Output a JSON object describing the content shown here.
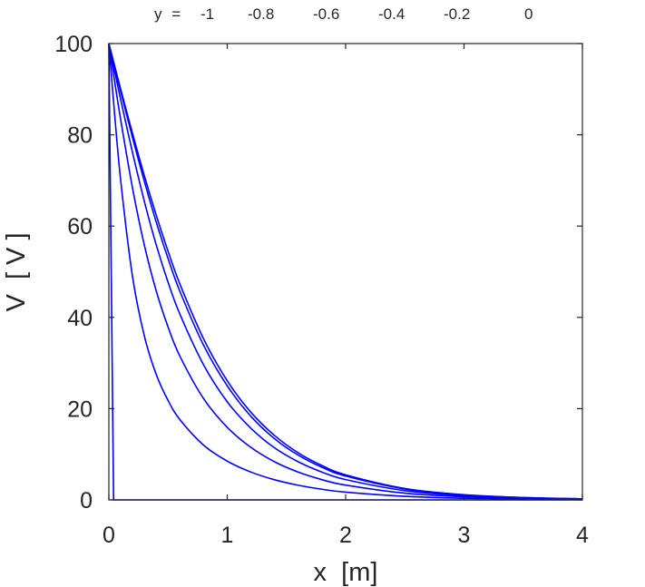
{
  "chart_data": {
    "type": "line",
    "title": "",
    "xlabel": "x  [m]",
    "ylabel": "V  [ V ]",
    "xlim": [
      0,
      4
    ],
    "ylim": [
      0,
      100
    ],
    "xticks": [
      "0",
      "1",
      "2",
      "3",
      "4"
    ],
    "yticks": [
      "0",
      "20",
      "40",
      "60",
      "80",
      "100"
    ],
    "grid": false,
    "legend_header": "y  =",
    "series_color": "#0000ff",
    "x": [
      0,
      0.04,
      0.1,
      0.2,
      0.3,
      0.4,
      0.5,
      0.6,
      0.8,
      1.0,
      1.2,
      1.4,
      1.6,
      1.8,
      2.0,
      2.5,
      3.0,
      3.5,
      4.0
    ],
    "series": [
      {
        "name": "-1",
        "values": [
          100,
          0,
          0,
          0,
          0,
          0,
          0,
          0,
          0,
          0,
          0,
          0,
          0,
          0,
          0,
          0,
          0,
          0,
          0
        ]
      },
      {
        "name": "-0.8",
        "values": [
          100,
          87.2,
          70.0,
          48.9,
          35.9,
          27.5,
          21.8,
          17.6,
          12.0,
          8.5,
          6.1,
          4.41,
          3.21,
          2.34,
          1.7,
          0.78,
          0.35,
          0.16,
          0.07
        ]
      },
      {
        "name": "-0.6",
        "values": [
          100,
          93.2,
          83.3,
          68.3,
          55.8,
          45.8,
          37.9,
          31.5,
          22.2,
          15.9,
          11.5,
          8.35,
          6.09,
          4.44,
          3.24,
          1.47,
          0.67,
          0.31,
          0.14
        ]
      },
      {
        "name": "-0.4",
        "values": [
          100,
          95.1,
          87.7,
          76.1,
          65.4,
          55.9,
          47.7,
          40.7,
          29.6,
          21.5,
          15.7,
          11.4,
          8.35,
          6.1,
          4.45,
          2.03,
          0.93,
          0.42,
          0.19
        ]
      },
      {
        "name": "-0.2",
        "values": [
          100,
          95.8,
          89.5,
          79.4,
          69.8,
          60.9,
          52.9,
          45.7,
          33.9,
          25.0,
          18.3,
          13.4,
          9.8,
          7.16,
          5.23,
          2.39,
          1.09,
          0.5,
          0.23
        ]
      },
      {
        "name": "0",
        "values": [
          100,
          96.0,
          90.0,
          80.3,
          71.0,
          62.4,
          54.5,
          47.3,
          35.3,
          26.1,
          19.2,
          14.1,
          10.3,
          7.53,
          5.5,
          2.51,
          1.14,
          0.52,
          0.24
        ]
      }
    ]
  }
}
